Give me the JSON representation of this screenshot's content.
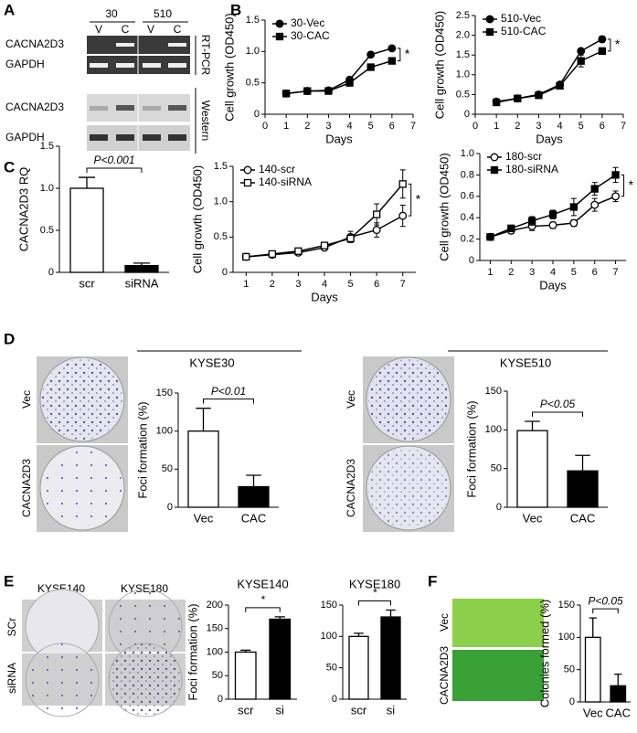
{
  "panels": {
    "A": {
      "label": "A",
      "lines": [
        "30",
        "510"
      ],
      "lanes": [
        "V",
        "C",
        "V",
        "C"
      ],
      "rtpcr": {
        "rows": [
          "CACNA2D3",
          "GAPDH"
        ],
        "method": "RT-PCR"
      },
      "western": {
        "rows": [
          "CACNA2D3",
          "GAPDH"
        ],
        "method": "Western"
      }
    },
    "B": {
      "label": "B"
    },
    "C": {
      "label": "C"
    },
    "D": {
      "label": "D",
      "groups": [
        "KYSE30",
        "KYSE510"
      ],
      "rows": [
        "Vec",
        "CACNA2D3"
      ]
    },
    "E": {
      "label": "E",
      "columns": [
        "KYSE140",
        "KYSE180"
      ],
      "rows": [
        "SCr",
        "siRNA"
      ]
    },
    "F": {
      "label": "F",
      "rows": [
        "Vec",
        "CACNA2D3"
      ]
    }
  },
  "chart_data": [
    {
      "type": "line",
      "ylabel": "Cell growth (OD450)",
      "xlabel": "Days",
      "x": [
        1,
        2,
        3,
        4,
        5,
        6
      ],
      "series": [
        {
          "name": "30-Vec",
          "color": "#000000",
          "marker": "circle",
          "marker_fill": "#000000",
          "values": [
            0.33,
            0.37,
            0.38,
            0.55,
            0.95,
            1.05
          ],
          "errors": [
            0.01,
            0.01,
            0.01,
            0.02,
            0.03,
            0.02
          ]
        },
        {
          "name": "30-CAC",
          "color": "#000000",
          "marker": "square",
          "marker_fill": "#000000",
          "values": [
            0.33,
            0.37,
            0.37,
            0.5,
            0.75,
            0.85
          ],
          "errors": [
            0.01,
            0.01,
            0.01,
            0.03,
            0.05,
            0.03
          ]
        }
      ],
      "xlim": [
        0,
        7
      ],
      "xticks": [
        0,
        1,
        2,
        3,
        4,
        5,
        6,
        7
      ],
      "ylim": [
        0,
        1.5
      ],
      "yticks": [
        0,
        0.5,
        {
          "value": 1,
          "label": "1.0"
        },
        1.5
      ],
      "legend": "upper left",
      "annotation": "*"
    },
    {
      "type": "line",
      "ylabel": "Cell growth (OD450)",
      "xlabel": "Days",
      "x": [
        1,
        2,
        3,
        4,
        5,
        6
      ],
      "series": [
        {
          "name": "510-Vec",
          "color": "#000000",
          "marker": "circle",
          "marker_fill": "#000000",
          "values": [
            0.32,
            0.4,
            0.5,
            0.75,
            1.6,
            1.9
          ],
          "errors": [
            0.02,
            0.02,
            0.03,
            0.04,
            0.05,
            0.08
          ]
        },
        {
          "name": "510-CAC",
          "color": "#000000",
          "marker": "square",
          "marker_fill": "#000000",
          "values": [
            0.3,
            0.4,
            0.48,
            0.72,
            1.35,
            1.6
          ],
          "errors": [
            0.02,
            0.02,
            0.03,
            0.04,
            0.15,
            0.08
          ]
        }
      ],
      "xlim": [
        0,
        7
      ],
      "xticks": [
        0,
        1,
        2,
        3,
        4,
        5,
        6,
        7
      ],
      "ylim": [
        0,
        2.5
      ],
      "yticks": [
        0,
        0.5,
        {
          "value": 1,
          "label": "1.0"
        },
        1.5,
        {
          "value": 2,
          "label": "2.0"
        },
        2.5
      ],
      "legend": "upper left",
      "annotation": "*"
    },
    {
      "type": "bar",
      "ylabel": "CACNA2D3 RQ",
      "categories": [
        "scr",
        "siRNA"
      ],
      "values": [
        1.0,
        0.08
      ],
      "errors": [
        0.13,
        0.03
      ],
      "colors": [
        "#ffffff",
        "#000000"
      ],
      "ylim": [
        0,
        1.5
      ],
      "yticks": [
        0,
        0.5,
        {
          "value": 1,
          "label": "1.0"
        },
        1.5
      ],
      "annotation": "P<0.001"
    },
    {
      "type": "line",
      "ylabel": "Cell growth (OD450)",
      "xlabel": "Days",
      "x": [
        1,
        2,
        3,
        4,
        5,
        6,
        7
      ],
      "series": [
        {
          "name": "140-scr",
          "color": "#000000",
          "marker": "circle",
          "marker_fill": "#ffffff",
          "values": [
            0.22,
            0.25,
            0.28,
            0.35,
            0.5,
            0.6,
            0.8
          ],
          "errors": [
            0.02,
            0.02,
            0.03,
            0.04,
            0.08,
            0.1,
            0.15
          ]
        },
        {
          "name": "140-siRNA",
          "color": "#000000",
          "marker": "square",
          "marker_fill": "#ffffff",
          "values": [
            0.22,
            0.26,
            0.3,
            0.38,
            0.48,
            0.82,
            1.25
          ],
          "errors": [
            0.02,
            0.02,
            0.03,
            0.04,
            0.06,
            0.15,
            0.2
          ]
        }
      ],
      "xlim": [
        0.5,
        7.5
      ],
      "xticks": [
        1,
        2,
        3,
        4,
        5,
        6,
        7
      ],
      "ylim": [
        0,
        1.5
      ],
      "yticks": [
        0,
        0.5,
        {
          "value": 1,
          "label": "1.0"
        },
        1.5
      ],
      "legend": "upper left",
      "annotation": "*"
    },
    {
      "type": "line",
      "ylabel": "Cell growth (OD450)",
      "xlabel": "Days",
      "x": [
        1,
        2,
        3,
        4,
        5,
        6,
        7
      ],
      "series": [
        {
          "name": "180-scr",
          "color": "#000000",
          "marker": "circle",
          "marker_fill": "#ffffff",
          "values": [
            0.22,
            0.28,
            0.32,
            0.33,
            0.35,
            0.52,
            0.6
          ],
          "errors": [
            0.01,
            0.03,
            0.04,
            0.03,
            0.03,
            0.06,
            0.05
          ]
        },
        {
          "name": "180-siRNA",
          "color": "#000000",
          "marker": "square",
          "marker_fill": "#000000",
          "values": [
            0.22,
            0.3,
            0.37,
            0.43,
            0.5,
            0.67,
            0.8
          ],
          "errors": [
            0.01,
            0.03,
            0.04,
            0.04,
            0.08,
            0.06,
            0.07
          ]
        }
      ],
      "xlim": [
        0.5,
        7.5
      ],
      "xticks": [
        1,
        2,
        3,
        4,
        5,
        6,
        7
      ],
      "ylim": [
        0,
        1.0
      ],
      "yticks": [
        0,
        0.2,
        0.4,
        0.6,
        0.8,
        {
          "value": 1,
          "label": "1.0"
        }
      ],
      "legend": "upper left",
      "annotation": "*"
    },
    {
      "type": "bar",
      "ylabel": "Foci formation (%)",
      "categories": [
        "Vec",
        "CAC"
      ],
      "values": [
        100,
        27
      ],
      "errors": [
        30,
        15
      ],
      "colors": [
        "#ffffff",
        "#000000"
      ],
      "ylim": [
        0,
        150
      ],
      "yticks": [
        0,
        50,
        100,
        150
      ],
      "annotation": "P<0.01"
    },
    {
      "type": "bar",
      "ylabel": "Foci formation (%)",
      "categories": [
        "Vec",
        "CAC"
      ],
      "values": [
        99,
        47
      ],
      "errors": [
        12,
        20
      ],
      "colors": [
        "#ffffff",
        "#000000"
      ],
      "ylim": [
        0,
        150
      ],
      "yticks": [
        0,
        50,
        100,
        150
      ],
      "annotation": "P<0.05"
    },
    {
      "type": "bar",
      "title": "KYSE140",
      "ylabel": "Foci formation (%)",
      "categories": [
        "scr",
        "si"
      ],
      "values": [
        100,
        170
      ],
      "errors": [
        4,
        5
      ],
      "colors": [
        "#ffffff",
        "#000000"
      ],
      "ylim": [
        0,
        200
      ],
      "yticks": [
        0,
        50,
        100,
        150,
        200
      ],
      "annotation": "*"
    },
    {
      "type": "bar",
      "title": "KYSE180",
      "categories": [
        "scr",
        "si"
      ],
      "values": [
        100,
        131
      ],
      "errors": [
        5,
        11
      ],
      "colors": [
        "#ffffff",
        "#000000"
      ],
      "ylim": [
        0,
        150
      ],
      "yticks": [
        0,
        50,
        100,
        150
      ],
      "annotation": "*"
    },
    {
      "type": "bar",
      "ylabel": "Colonies formed (%)",
      "categories": [
        "Vec",
        "CAC"
      ],
      "values": [
        100,
        25
      ],
      "errors": [
        30,
        18
      ],
      "colors": [
        "#ffffff",
        "#000000"
      ],
      "ylim": [
        0,
        150
      ],
      "yticks": [
        0,
        50,
        100,
        150
      ],
      "annotation": "P<0.05"
    }
  ]
}
